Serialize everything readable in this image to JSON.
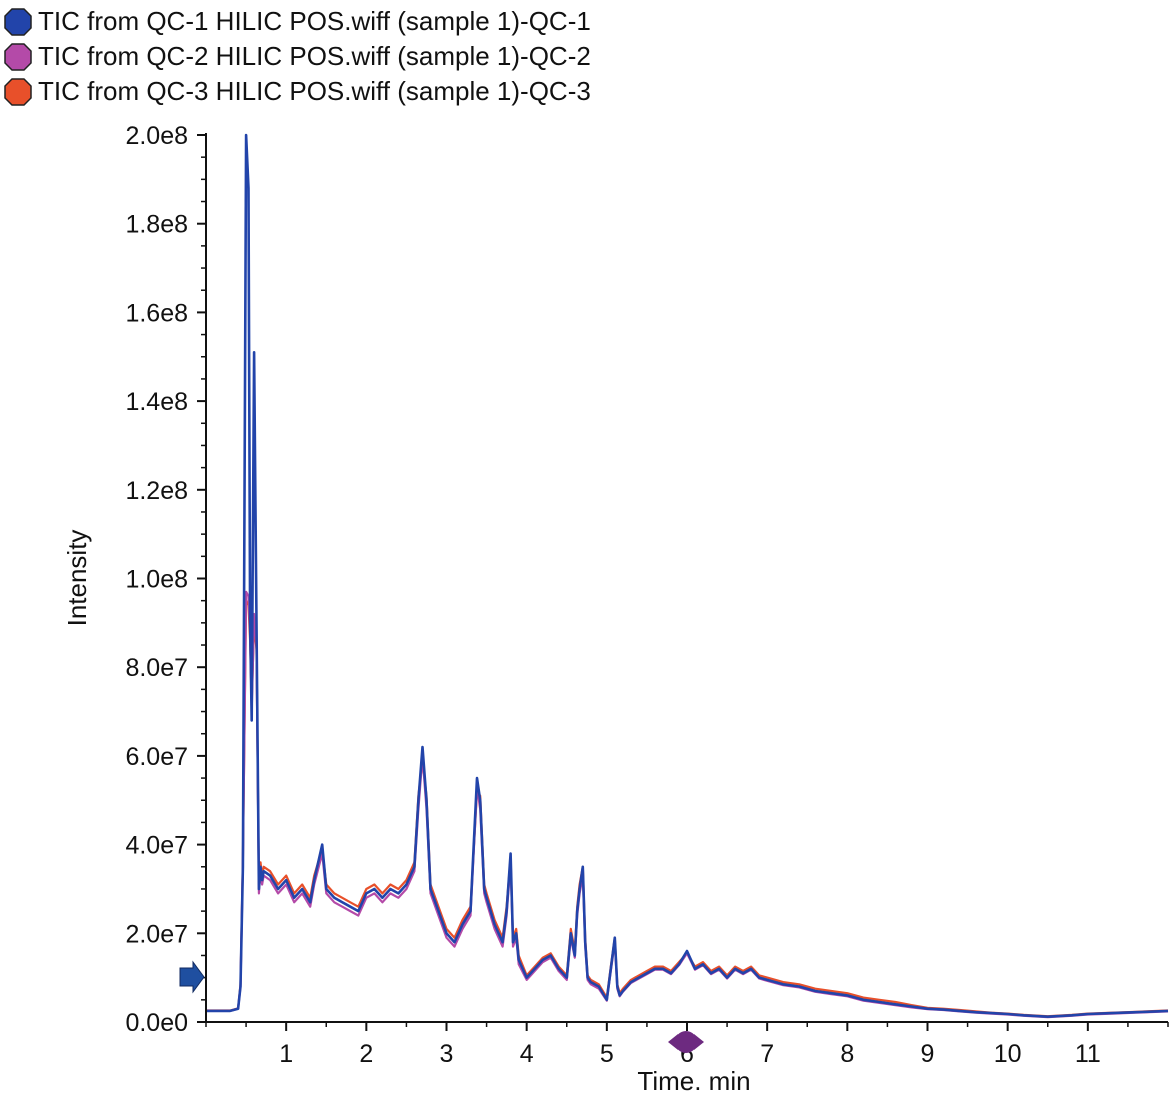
{
  "chart_data": {
    "type": "line",
    "xlabel": "Time. min",
    "ylabel": "Intensity",
    "xlim": [
      0,
      12
    ],
    "ylim": [
      0,
      200000000
    ],
    "x_ticks": [
      {
        "value": 1,
        "label": "1"
      },
      {
        "value": 2,
        "label": "2"
      },
      {
        "value": 3,
        "label": "3"
      },
      {
        "value": 4,
        "label": "4"
      },
      {
        "value": 5,
        "label": "5"
      },
      {
        "value": 6,
        "label": "6"
      },
      {
        "value": 7,
        "label": "7"
      },
      {
        "value": 8,
        "label": "8"
      },
      {
        "value": 9,
        "label": "9"
      },
      {
        "value": 10,
        "label": "10"
      },
      {
        "value": 11,
        "label": "11"
      }
    ],
    "y_ticks": [
      {
        "value": 0,
        "label": "0.0e0"
      },
      {
        "value": 20000000,
        "label": "2.0e7"
      },
      {
        "value": 40000000,
        "label": "4.0e7"
      },
      {
        "value": 60000000,
        "label": "6.0e7"
      },
      {
        "value": 80000000,
        "label": "8.0e7"
      },
      {
        "value": 100000000,
        "label": "1.0e8"
      },
      {
        "value": 120000000,
        "label": "1.2e8"
      },
      {
        "value": 140000000,
        "label": "1.4e8"
      },
      {
        "value": 160000000,
        "label": "1.6e8"
      },
      {
        "value": 180000000,
        "label": "1.8e8"
      },
      {
        "value": 200000000,
        "label": "2.0e8"
      }
    ],
    "grid": false,
    "legend_position": "top-left",
    "series": [
      {
        "name": "TIC from QC-1 HILIC POS.wiff (sample 1)-QC-1",
        "color": "#2244aa",
        "x": [
          0.0,
          0.3,
          0.4,
          0.43,
          0.46,
          0.5,
          0.53,
          0.55,
          0.57,
          0.6,
          0.63,
          0.66,
          0.68,
          0.7,
          0.72,
          0.8,
          0.9,
          1.0,
          1.1,
          1.2,
          1.3,
          1.35,
          1.45,
          1.5,
          1.6,
          1.7,
          1.8,
          1.9,
          2.0,
          2.1,
          2.2,
          2.3,
          2.4,
          2.5,
          2.6,
          2.65,
          2.7,
          2.75,
          2.8,
          2.9,
          3.0,
          3.1,
          3.2,
          3.3,
          3.38,
          3.42,
          3.47,
          3.5,
          3.6,
          3.7,
          3.75,
          3.8,
          3.83,
          3.87,
          3.9,
          4.0,
          4.1,
          4.2,
          4.3,
          4.4,
          4.5,
          4.55,
          4.6,
          4.63,
          4.66,
          4.7,
          4.73,
          4.76,
          4.8,
          4.9,
          5.0,
          5.05,
          5.1,
          5.13,
          5.16,
          5.2,
          5.3,
          5.4,
          5.5,
          5.6,
          5.7,
          5.8,
          5.9,
          6.0,
          6.1,
          6.2,
          6.3,
          6.4,
          6.5,
          6.6,
          6.7,
          6.8,
          6.9,
          7.0,
          7.2,
          7.4,
          7.6,
          7.8,
          8.0,
          8.2,
          8.4,
          8.6,
          8.8,
          9.0,
          9.2,
          9.4,
          9.6,
          9.8,
          10.0,
          10.2,
          10.5,
          10.8,
          11.0,
          11.3,
          11.6,
          12.0
        ],
        "values": [
          2500000,
          2500000,
          3000000,
          8000000,
          35000000,
          200000000,
          188000000,
          90000000,
          68000000,
          151000000,
          90000000,
          30000000,
          35000000,
          32000000,
          34000000,
          33000000,
          30000000,
          32000000,
          28000000,
          30000000,
          27000000,
          32000000,
          40000000,
          30000000,
          28000000,
          27000000,
          26000000,
          25000000,
          29000000,
          30000000,
          28000000,
          30000000,
          29000000,
          31000000,
          35000000,
          50000000,
          62000000,
          50000000,
          30000000,
          25000000,
          20000000,
          18000000,
          22000000,
          25000000,
          55000000,
          50000000,
          30000000,
          28000000,
          22000000,
          18000000,
          25000000,
          38000000,
          18000000,
          20000000,
          14000000,
          10000000,
          12000000,
          14000000,
          15000000,
          12000000,
          10000000,
          20000000,
          15000000,
          25000000,
          30000000,
          35000000,
          18000000,
          10000000,
          9000000,
          8000000,
          5000000,
          12000000,
          19000000,
          8000000,
          6000000,
          7000000,
          9000000,
          10000000,
          11000000,
          12000000,
          12000000,
          11000000,
          13000000,
          16000000,
          12000000,
          13000000,
          11000000,
          12000000,
          10000000,
          12000000,
          11000000,
          12000000,
          10000000,
          9500000,
          8500000,
          8000000,
          7000000,
          6500000,
          6000000,
          5000000,
          4500000,
          4000000,
          3500000,
          3000000,
          2800000,
          2500000,
          2200000,
          2000000,
          1800000,
          1500000,
          1200000,
          1500000,
          1800000,
          2000000,
          2200000,
          2500000
        ]
      },
      {
        "name": "TIC from QC-2 HILIC POS.wiff (sample 1)-QC-2",
        "color": "#b44aa8",
        "x": [
          0.0,
          0.3,
          0.4,
          0.43,
          0.46,
          0.5,
          0.53,
          0.55,
          0.57,
          0.6,
          0.63,
          0.66,
          0.68,
          0.7,
          0.72,
          0.8,
          0.9,
          1.0,
          1.1,
          1.2,
          1.3,
          1.35,
          1.45,
          1.5,
          1.6,
          1.7,
          1.8,
          1.9,
          2.0,
          2.1,
          2.2,
          2.3,
          2.4,
          2.5,
          2.6,
          2.65,
          2.7,
          2.75,
          2.8,
          2.9,
          3.0,
          3.1,
          3.2,
          3.3,
          3.38,
          3.42,
          3.47,
          3.5,
          3.6,
          3.7,
          3.75,
          3.8,
          3.83,
          3.87,
          3.9,
          4.0,
          4.1,
          4.2,
          4.3,
          4.4,
          4.5,
          4.55,
          4.6,
          4.63,
          4.66,
          4.7,
          4.73,
          4.76,
          4.8,
          4.9,
          5.0,
          5.05,
          5.1,
          5.13,
          5.16,
          5.2,
          5.3,
          5.4,
          5.5,
          5.6,
          5.7,
          5.8,
          5.9,
          6.0,
          6.1,
          6.2,
          6.3,
          6.4,
          6.5,
          6.6,
          6.7,
          6.8,
          6.9,
          7.0,
          7.2,
          7.4,
          7.6,
          7.8,
          8.0,
          8.2,
          8.4,
          8.6,
          8.8,
          9.0,
          9.2,
          9.4,
          9.6,
          9.8,
          10.0,
          10.2,
          10.5,
          10.8,
          11.0,
          11.3,
          11.6,
          12.0
        ],
        "values": [
          2500000,
          2500000,
          3000000,
          8000000,
          36000000,
          97000000,
          96000000,
          88000000,
          70000000,
          92000000,
          85000000,
          29000000,
          34000000,
          31000000,
          33000000,
          32000000,
          29000000,
          31000000,
          27000000,
          29000000,
          26000000,
          31000000,
          38000000,
          29000000,
          27000000,
          26000000,
          25000000,
          24000000,
          28000000,
          29000000,
          27000000,
          29000000,
          28000000,
          30000000,
          34000000,
          48000000,
          60000000,
          48000000,
          29000000,
          24000000,
          19000000,
          17000000,
          21000000,
          24000000,
          53000000,
          48000000,
          29000000,
          27000000,
          21000000,
          17000000,
          24000000,
          36000000,
          17000000,
          19000000,
          13000000,
          9500000,
          11500000,
          13500000,
          14500000,
          11500000,
          9500000,
          19000000,
          14500000,
          24000000,
          29000000,
          33000000,
          17000000,
          9500000,
          8500000,
          7500000,
          4800000,
          11500000,
          18000000,
          7500000,
          5800000,
          6800000,
          8800000,
          9800000,
          10800000,
          11800000,
          11800000,
          10800000,
          12800000,
          15500000,
          11800000,
          12800000,
          10800000,
          11800000,
          9800000,
          11800000,
          10800000,
          11800000,
          9800000,
          9300000,
          8300000,
          7800000,
          6800000,
          6300000,
          5800000,
          4800000,
          4300000,
          3800000,
          3300000,
          2900000,
          2700000,
          2400000,
          2100000,
          1900000,
          1700000,
          1400000,
          1100000,
          1400000,
          1700000,
          1900000,
          2100000,
          2400000
        ]
      },
      {
        "name": "TIC from QC-3 HILIC POS.wiff (sample 1)-QC-3",
        "color": "#e8502a",
        "x": [
          0.0,
          0.3,
          0.4,
          0.43,
          0.46,
          0.5,
          0.53,
          0.55,
          0.57,
          0.6,
          0.63,
          0.66,
          0.68,
          0.7,
          0.72,
          0.8,
          0.9,
          1.0,
          1.1,
          1.2,
          1.3,
          1.35,
          1.45,
          1.5,
          1.6,
          1.7,
          1.8,
          1.9,
          2.0,
          2.1,
          2.2,
          2.3,
          2.4,
          2.5,
          2.6,
          2.65,
          2.7,
          2.75,
          2.8,
          2.9,
          3.0,
          3.1,
          3.2,
          3.3,
          3.38,
          3.42,
          3.47,
          3.5,
          3.6,
          3.7,
          3.75,
          3.8,
          3.83,
          3.87,
          3.9,
          4.0,
          4.1,
          4.2,
          4.3,
          4.4,
          4.5,
          4.55,
          4.6,
          4.63,
          4.66,
          4.7,
          4.73,
          4.76,
          4.8,
          4.9,
          5.0,
          5.05,
          5.1,
          5.13,
          5.16,
          5.2,
          5.3,
          5.4,
          5.5,
          5.6,
          5.7,
          5.8,
          5.9,
          6.0,
          6.1,
          6.2,
          6.3,
          6.4,
          6.5,
          6.6,
          6.7,
          6.8,
          6.9,
          7.0,
          7.2,
          7.4,
          7.6,
          7.8,
          8.0,
          8.2,
          8.4,
          8.6,
          8.8,
          9.0,
          9.2,
          9.4,
          9.6,
          9.8,
          10.0,
          10.2,
          10.5,
          10.8,
          11.0,
          11.3,
          11.6,
          12.0
        ],
        "values": [
          2600000,
          2600000,
          3100000,
          8500000,
          37000000,
          95000000,
          94000000,
          86000000,
          72000000,
          90000000,
          84000000,
          31000000,
          36000000,
          33000000,
          35000000,
          34000000,
          31000000,
          33000000,
          29000000,
          31000000,
          28000000,
          33000000,
          39000000,
          31000000,
          29000000,
          28000000,
          27000000,
          26000000,
          30000000,
          31000000,
          29000000,
          31000000,
          30000000,
          32000000,
          36000000,
          51000000,
          59000000,
          51000000,
          31000000,
          26000000,
          21000000,
          19000000,
          23000000,
          26000000,
          52000000,
          51000000,
          31000000,
          29000000,
          23000000,
          19000000,
          26000000,
          37000000,
          19000000,
          21000000,
          15000000,
          10500000,
          12500000,
          14500000,
          15500000,
          12500000,
          10500000,
          21000000,
          16000000,
          26000000,
          31000000,
          35000000,
          19000000,
          10500000,
          9500000,
          8500000,
          5500000,
          12500000,
          19000000,
          8500000,
          6500000,
          7500000,
          9500000,
          10500000,
          11500000,
          12500000,
          12500000,
          11500000,
          13500000,
          15500000,
          12500000,
          13500000,
          11500000,
          12500000,
          10500000,
          12500000,
          11500000,
          12500000,
          10500000,
          10000000,
          9000000,
          8500000,
          7500000,
          7000000,
          6500000,
          5500000,
          5000000,
          4500000,
          3800000,
          3200000,
          3000000,
          2700000,
          2400000,
          2100000,
          1900000,
          1600000,
          1300000,
          1600000,
          1900000,
          2100000,
          2300000,
          2600000
        ]
      }
    ]
  }
}
